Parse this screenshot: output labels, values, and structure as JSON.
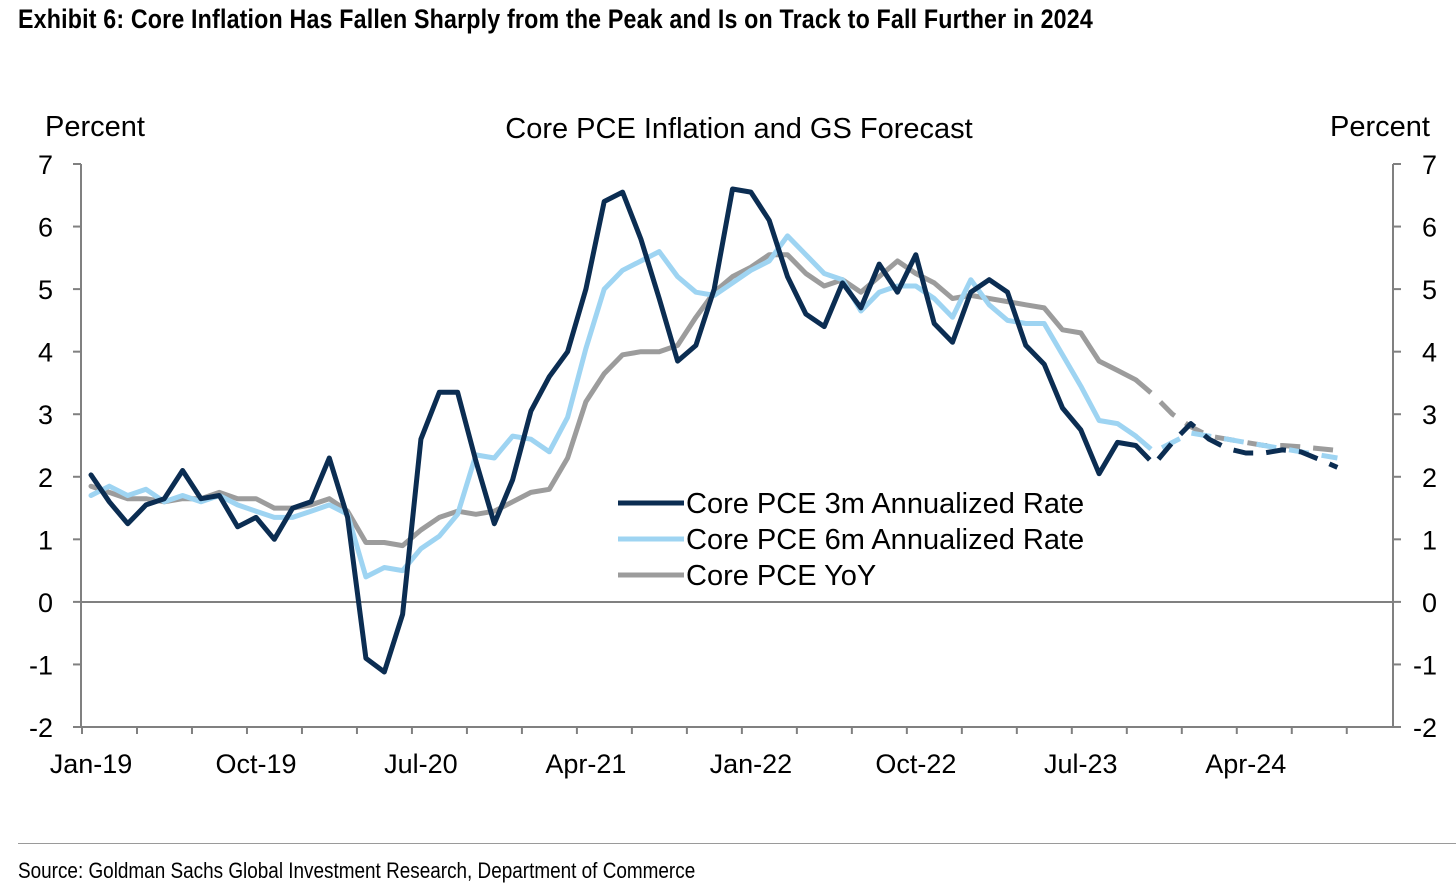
{
  "exhibit_title": "Exhibit 6: Core Inflation Has Fallen Sharply from the Peak and Is on Track to Fall Further in 2024",
  "source_note": "Source: Goldman Sachs Global Investment Research, Department of Commerce",
  "chart_data": {
    "type": "line",
    "title": "Core PCE Inflation and GS Forecast",
    "ylabel_left": "Percent",
    "ylabel_right": "Percent",
    "ylim": [
      -2,
      7
    ],
    "yticks": [
      "7",
      "6",
      "5",
      "4",
      "3",
      "2",
      "1",
      "0",
      "-1",
      "-2"
    ],
    "x_start": "Jan-19",
    "x_end": "Dec-24",
    "x_tick_labels": [
      "Jan-19",
      "Oct-19",
      "Jul-20",
      "Apr-21",
      "Jan-22",
      "Oct-22",
      "Jul-23",
      "Apr-24"
    ],
    "legend_position": "center-right",
    "grid": false,
    "colors": {
      "3m": "#0b2d52",
      "6m": "#9ed4f2",
      "yoy": "#9c9c9c",
      "zero_line": "#808080"
    },
    "series": [
      {
        "key": "3m",
        "name": "Core PCE 3m Annualized Rate",
        "actual": [
          2.03,
          1.6,
          1.25,
          1.55,
          1.65,
          2.1,
          1.65,
          1.7,
          1.2,
          1.35,
          1.0,
          1.5,
          1.6,
          2.3,
          1.35,
          -0.9,
          -1.12,
          -0.2,
          2.6,
          3.35,
          3.35,
          2.25,
          1.25,
          1.95,
          3.05,
          3.6,
          4.0,
          5.0,
          6.4,
          6.55,
          5.8,
          4.85,
          3.85,
          4.1,
          5.0,
          6.6,
          6.55,
          6.1,
          5.2,
          4.6,
          4.4,
          5.1,
          4.7,
          5.4,
          4.95,
          5.55,
          4.45,
          4.15,
          4.95,
          5.15,
          4.95,
          4.1,
          3.8,
          3.1,
          2.75,
          2.05,
          2.55,
          2.5
        ],
        "forecast": [
          2.5,
          2.2,
          2.55,
          2.85,
          2.6,
          2.45,
          2.38,
          2.38,
          2.43,
          2.4,
          2.28,
          2.15
        ]
      },
      {
        "key": "6m",
        "name": "Core PCE 6m Annualized Rate",
        "actual": [
          1.7,
          1.85,
          1.7,
          1.8,
          1.6,
          1.7,
          1.6,
          1.7,
          1.55,
          1.45,
          1.35,
          1.35,
          1.45,
          1.55,
          1.4,
          0.4,
          0.55,
          0.5,
          0.85,
          1.05,
          1.4,
          2.35,
          2.3,
          2.65,
          2.6,
          2.4,
          2.95,
          4.05,
          5.0,
          5.3,
          5.45,
          5.6,
          5.2,
          4.95,
          4.9,
          5.1,
          5.3,
          5.45,
          5.85,
          5.55,
          5.25,
          5.15,
          4.65,
          4.95,
          5.05,
          5.05,
          4.85,
          4.55,
          5.15,
          4.75,
          4.5,
          4.45,
          4.45,
          3.95,
          3.45,
          2.9,
          2.85,
          2.65
        ],
        "forecast": [
          2.65,
          2.4,
          2.55,
          2.7,
          2.65,
          2.6,
          2.55,
          2.5,
          2.45,
          2.4,
          2.35,
          2.3
        ]
      },
      {
        "key": "yoy",
        "name": "Core PCE YoY",
        "actual": [
          1.85,
          1.75,
          1.65,
          1.65,
          1.6,
          1.65,
          1.65,
          1.75,
          1.65,
          1.65,
          1.5,
          1.5,
          1.55,
          1.65,
          1.45,
          0.95,
          0.95,
          0.9,
          1.15,
          1.35,
          1.45,
          1.4,
          1.45,
          1.6,
          1.75,
          1.8,
          2.3,
          3.2,
          3.65,
          3.95,
          4.0,
          4.0,
          4.1,
          4.55,
          4.95,
          5.2,
          5.35,
          5.55,
          5.55,
          5.25,
          5.05,
          5.15,
          4.95,
          5.2,
          5.45,
          5.25,
          5.1,
          4.85,
          4.9,
          4.85,
          4.8,
          4.75,
          4.7,
          4.35,
          4.3,
          3.85,
          3.7,
          3.55
        ],
        "forecast": [
          3.55,
          3.3,
          3.0,
          2.8,
          2.65,
          2.6,
          2.55,
          2.5,
          2.5,
          2.48,
          2.45,
          2.42
        ]
      }
    ]
  }
}
